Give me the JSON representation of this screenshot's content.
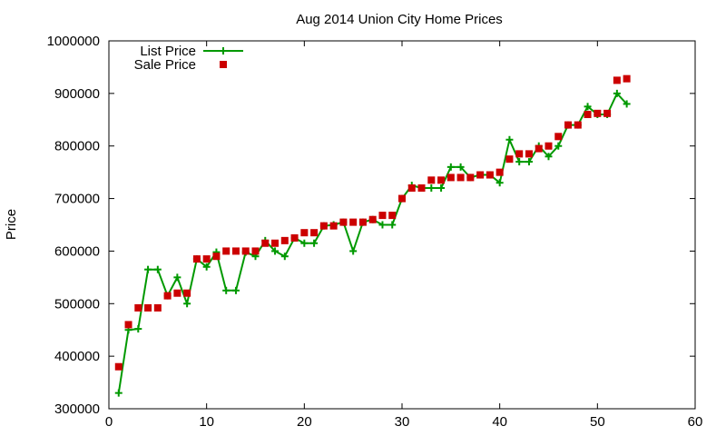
{
  "chart_data": {
    "type": "line",
    "title": "Aug 2014 Union City Home Prices",
    "xlabel": "",
    "ylabel": "Price",
    "xlim": [
      0,
      60
    ],
    "ylim": [
      300000,
      1000000
    ],
    "xticks": [
      0,
      10,
      20,
      30,
      40,
      50,
      60
    ],
    "yticks": [
      300000,
      400000,
      500000,
      600000,
      700000,
      800000,
      900000,
      1000000
    ],
    "grid": false,
    "legend_position": "top-left",
    "series": [
      {
        "name": "List Price",
        "style": "line-plus",
        "color": "#009900",
        "x": [
          1,
          2,
          3,
          4,
          5,
          6,
          7,
          8,
          9,
          10,
          11,
          12,
          13,
          14,
          15,
          16,
          17,
          18,
          19,
          20,
          21,
          22,
          23,
          24,
          25,
          26,
          27,
          28,
          29,
          30,
          31,
          32,
          33,
          34,
          35,
          36,
          37,
          38,
          39,
          40,
          41,
          42,
          43,
          44,
          45,
          46,
          47,
          48,
          49,
          50,
          51,
          52,
          53
        ],
        "values": [
          330000,
          450000,
          452000,
          565000,
          565000,
          515000,
          550000,
          500000,
          585000,
          570000,
          598000,
          525000,
          525000,
          598000,
          590000,
          620000,
          600000,
          590000,
          625000,
          615000,
          615000,
          648000,
          650000,
          655000,
          600000,
          655000,
          660000,
          650000,
          650000,
          700000,
          725000,
          720000,
          720000,
          720000,
          760000,
          760000,
          740000,
          745000,
          745000,
          730000,
          812000,
          770000,
          770000,
          800000,
          780000,
          800000,
          840000,
          840000,
          875000,
          860000,
          860000,
          900000,
          880000
        ]
      },
      {
        "name": "Sale Price",
        "style": "square-markers",
        "color": "#cc0000",
        "x": [
          1,
          2,
          3,
          4,
          5,
          6,
          7,
          8,
          9,
          10,
          11,
          12,
          13,
          14,
          15,
          16,
          17,
          18,
          19,
          20,
          21,
          22,
          23,
          24,
          25,
          26,
          27,
          28,
          29,
          30,
          31,
          32,
          33,
          34,
          35,
          36,
          37,
          38,
          39,
          40,
          41,
          42,
          43,
          44,
          45,
          46,
          47,
          48,
          49,
          50,
          51,
          52,
          53
        ],
        "values": [
          380000,
          460000,
          492000,
          492000,
          492000,
          515000,
          520000,
          520000,
          585000,
          585000,
          590000,
          600000,
          600000,
          600000,
          600000,
          615000,
          615000,
          620000,
          625000,
          635000,
          635000,
          648000,
          648000,
          655000,
          655000,
          655000,
          660000,
          668000,
          668000,
          700000,
          720000,
          720000,
          735000,
          735000,
          740000,
          740000,
          740000,
          745000,
          745000,
          750000,
          775000,
          785000,
          785000,
          795000,
          800000,
          818000,
          840000,
          840000,
          860000,
          862000,
          862000,
          925000,
          928000
        ]
      }
    ]
  }
}
